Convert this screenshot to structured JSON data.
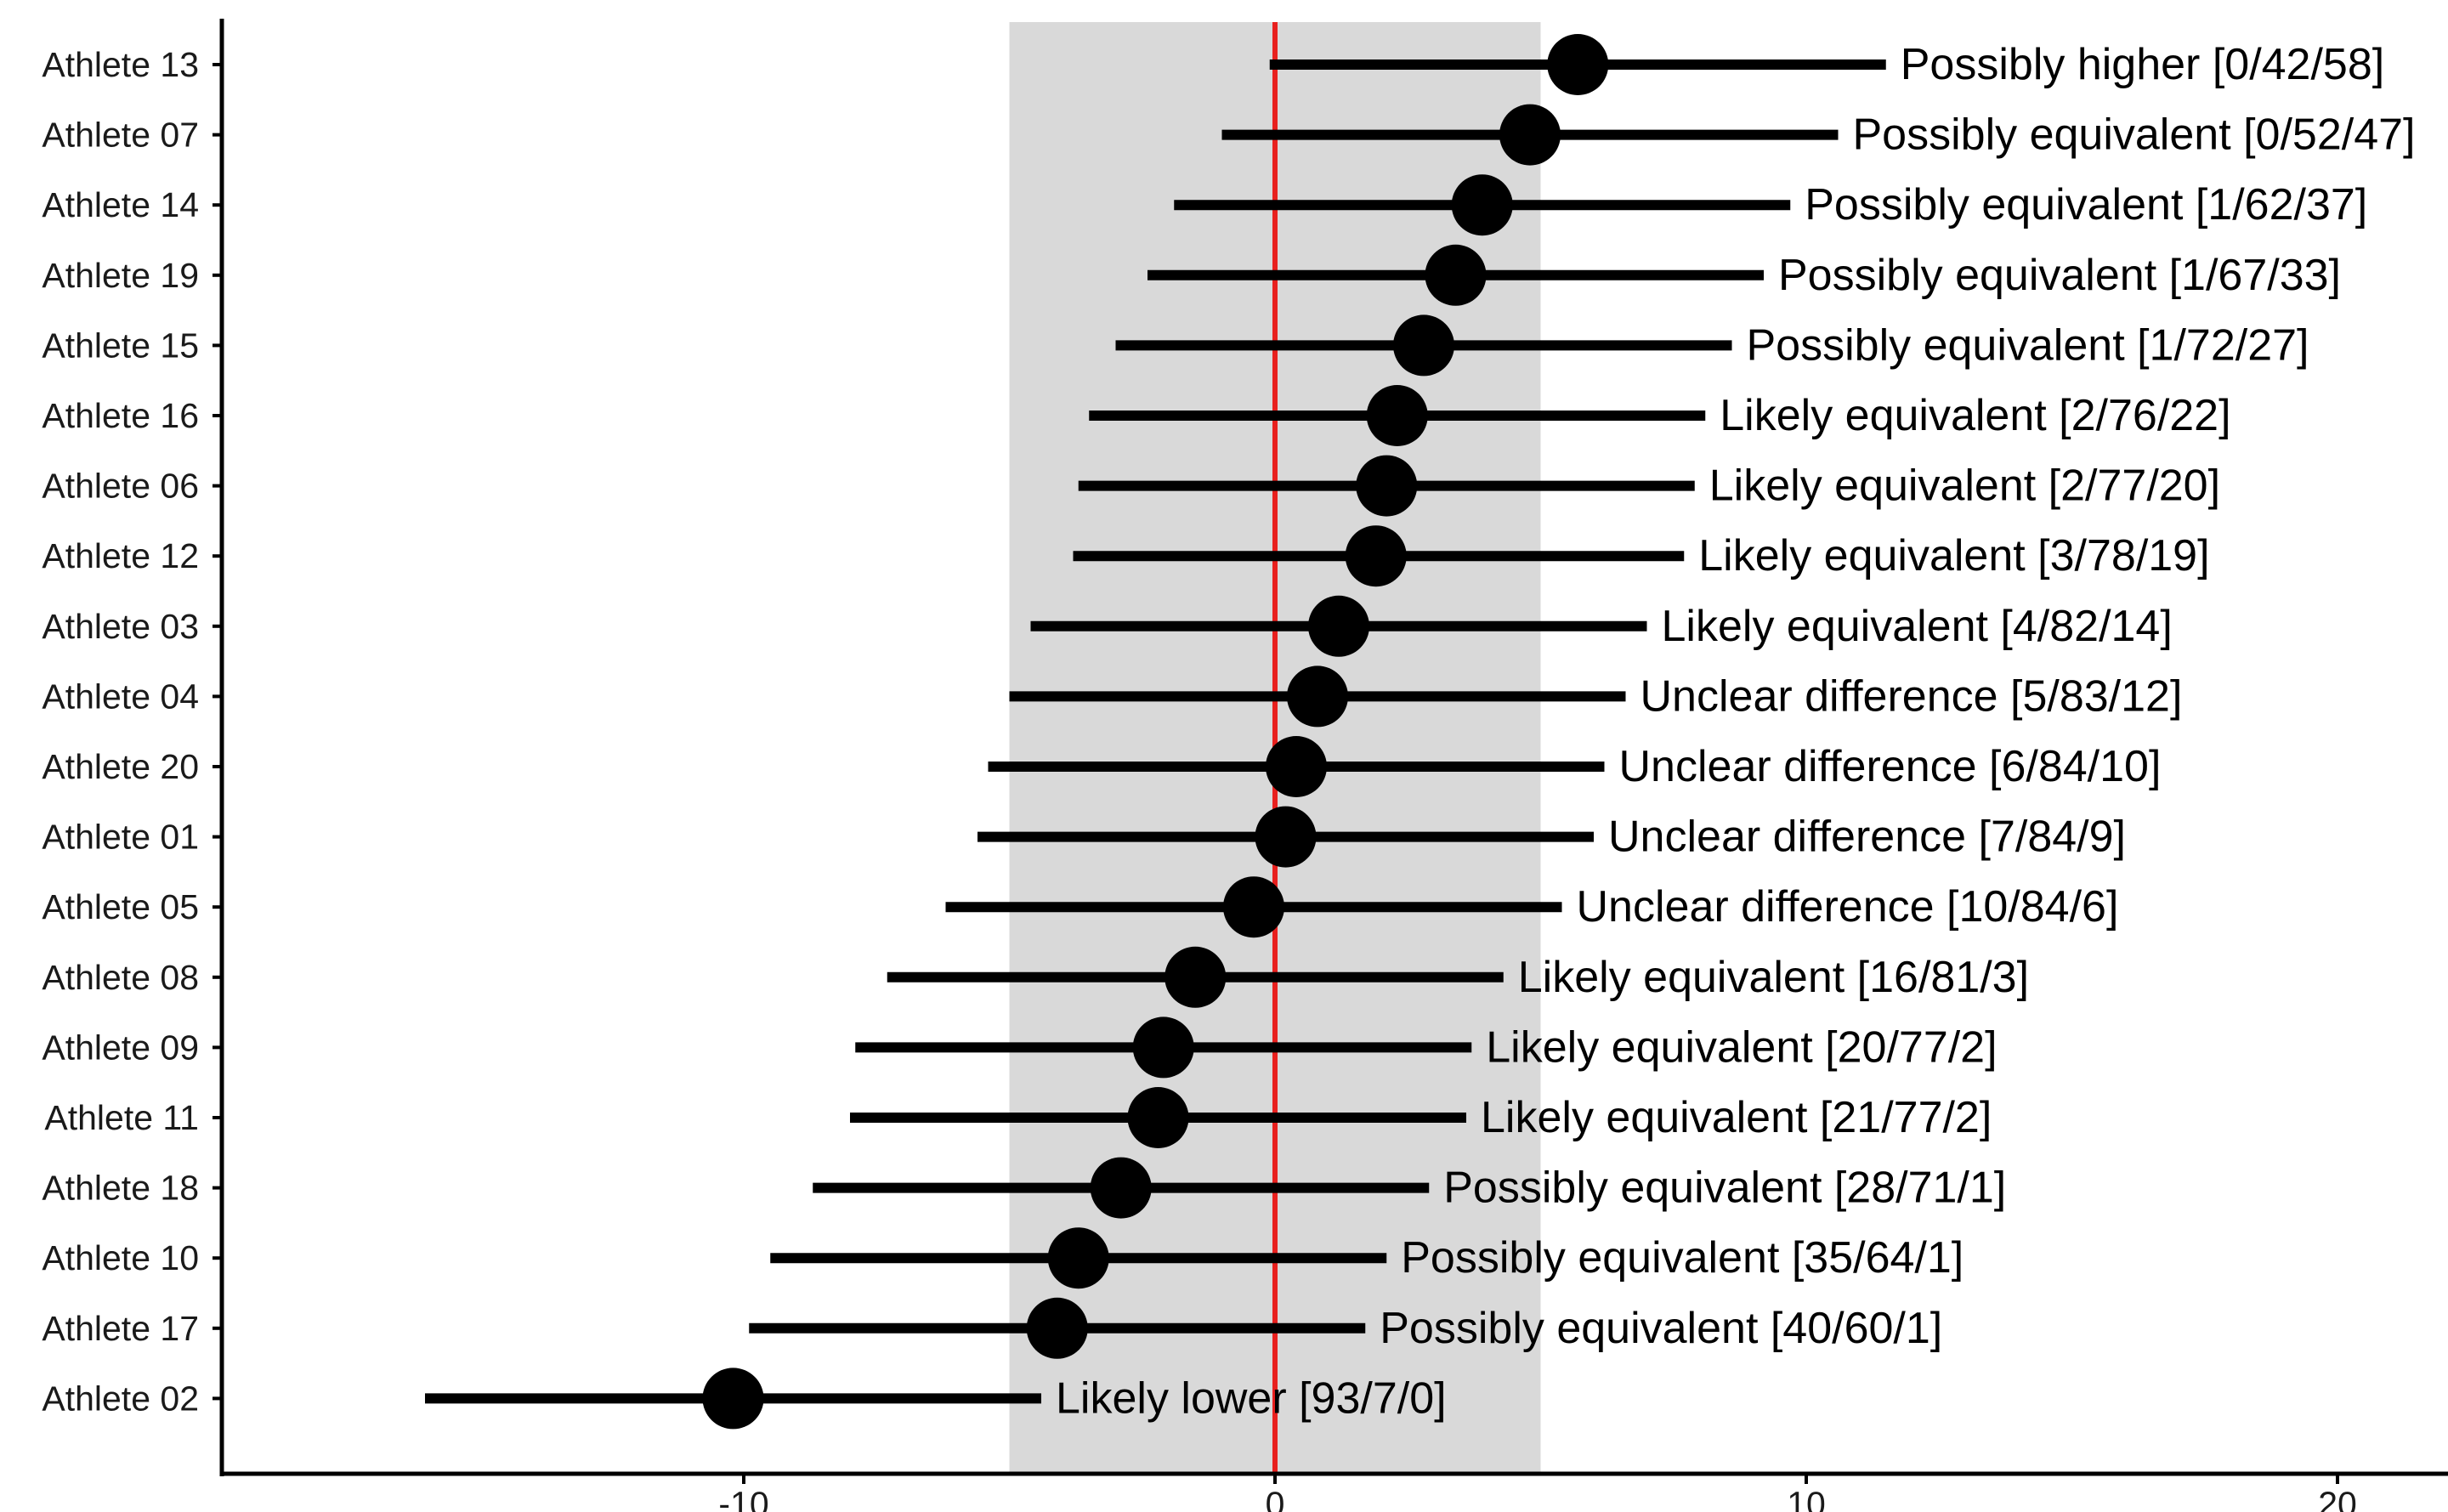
{
  "chart_data": {
    "type": "forest",
    "title": "",
    "xlabel": "",
    "ylabel": "",
    "xlim": [
      -19.8,
      22
    ],
    "xticks": [
      -10,
      0,
      10,
      20
    ],
    "xtick_labels": [
      "-10",
      "0",
      "10",
      "20"
    ],
    "equivalence_band": [
      -5,
      5
    ],
    "reference_line_x": 0,
    "grid": false,
    "colors": {
      "band": "#d9d9d9",
      "reference_line": "#e8201e",
      "marks": "#000000"
    },
    "rows": [
      {
        "athlete": "Athlete 13",
        "estimate": 5.7,
        "lower": -0.1,
        "upper": 11.5,
        "label": "Possibly higher [0/42/58]"
      },
      {
        "athlete": "Athlete 07",
        "estimate": 4.8,
        "lower": -1.0,
        "upper": 10.6,
        "label": "Possibly equivalent [0/52/47]"
      },
      {
        "athlete": "Athlete 14",
        "estimate": 3.9,
        "lower": -1.9,
        "upper": 9.7,
        "label": "Possibly equivalent [1/62/37]"
      },
      {
        "athlete": "Athlete 19",
        "estimate": 3.4,
        "lower": -2.4,
        "upper": 9.2,
        "label": "Possibly equivalent [1/67/33]"
      },
      {
        "athlete": "Athlete 15",
        "estimate": 2.8,
        "lower": -3.0,
        "upper": 8.6,
        "label": "Possibly equivalent [1/72/27]"
      },
      {
        "athlete": "Athlete 16",
        "estimate": 2.3,
        "lower": -3.5,
        "upper": 8.1,
        "label": "Likely equivalent [2/76/22]"
      },
      {
        "athlete": "Athlete 06",
        "estimate": 2.1,
        "lower": -3.7,
        "upper": 7.9,
        "label": "Likely equivalent [2/77/20]"
      },
      {
        "athlete": "Athlete 12",
        "estimate": 1.9,
        "lower": -3.8,
        "upper": 7.7,
        "label": "Likely equivalent [3/78/19]"
      },
      {
        "athlete": "Athlete 03",
        "estimate": 1.2,
        "lower": -4.6,
        "upper": 7.0,
        "label": "Likely equivalent [4/82/14]"
      },
      {
        "athlete": "Athlete 04",
        "estimate": 0.8,
        "lower": -5.0,
        "upper": 6.6,
        "label": "Unclear difference [5/83/12]"
      },
      {
        "athlete": "Athlete 20",
        "estimate": 0.4,
        "lower": -5.4,
        "upper": 6.2,
        "label": "Unclear difference [6/84/10]"
      },
      {
        "athlete": "Athlete 01",
        "estimate": 0.2,
        "lower": -5.6,
        "upper": 6.0,
        "label": "Unclear difference [7/84/9]"
      },
      {
        "athlete": "Athlete 05",
        "estimate": -0.4,
        "lower": -6.2,
        "upper": 5.4,
        "label": "Unclear difference [10/84/6]"
      },
      {
        "athlete": "Athlete 08",
        "estimate": -1.5,
        "lower": -7.3,
        "upper": 4.3,
        "label": "Likely equivalent [16/81/3]"
      },
      {
        "athlete": "Athlete 09",
        "estimate": -2.1,
        "lower": -7.9,
        "upper": 3.7,
        "label": "Likely equivalent [20/77/2]"
      },
      {
        "athlete": "Athlete 11",
        "estimate": -2.2,
        "lower": -8.0,
        "upper": 3.6,
        "label": "Likely equivalent [21/77/2]"
      },
      {
        "athlete": "Athlete 18",
        "estimate": -2.9,
        "lower": -8.7,
        "upper": 2.9,
        "label": "Possibly equivalent [28/71/1]"
      },
      {
        "athlete": "Athlete 10",
        "estimate": -3.7,
        "lower": -9.5,
        "upper": 2.1,
        "label": "Possibly equivalent [35/64/1]"
      },
      {
        "athlete": "Athlete 17",
        "estimate": -4.1,
        "lower": -9.9,
        "upper": 1.7,
        "label": "Possibly equivalent [40/60/1]"
      },
      {
        "athlete": "Athlete 02",
        "estimate": -10.2,
        "lower": -16.0,
        "upper": -4.4,
        "label": "Likely lower [93/7/0]"
      }
    ]
  }
}
